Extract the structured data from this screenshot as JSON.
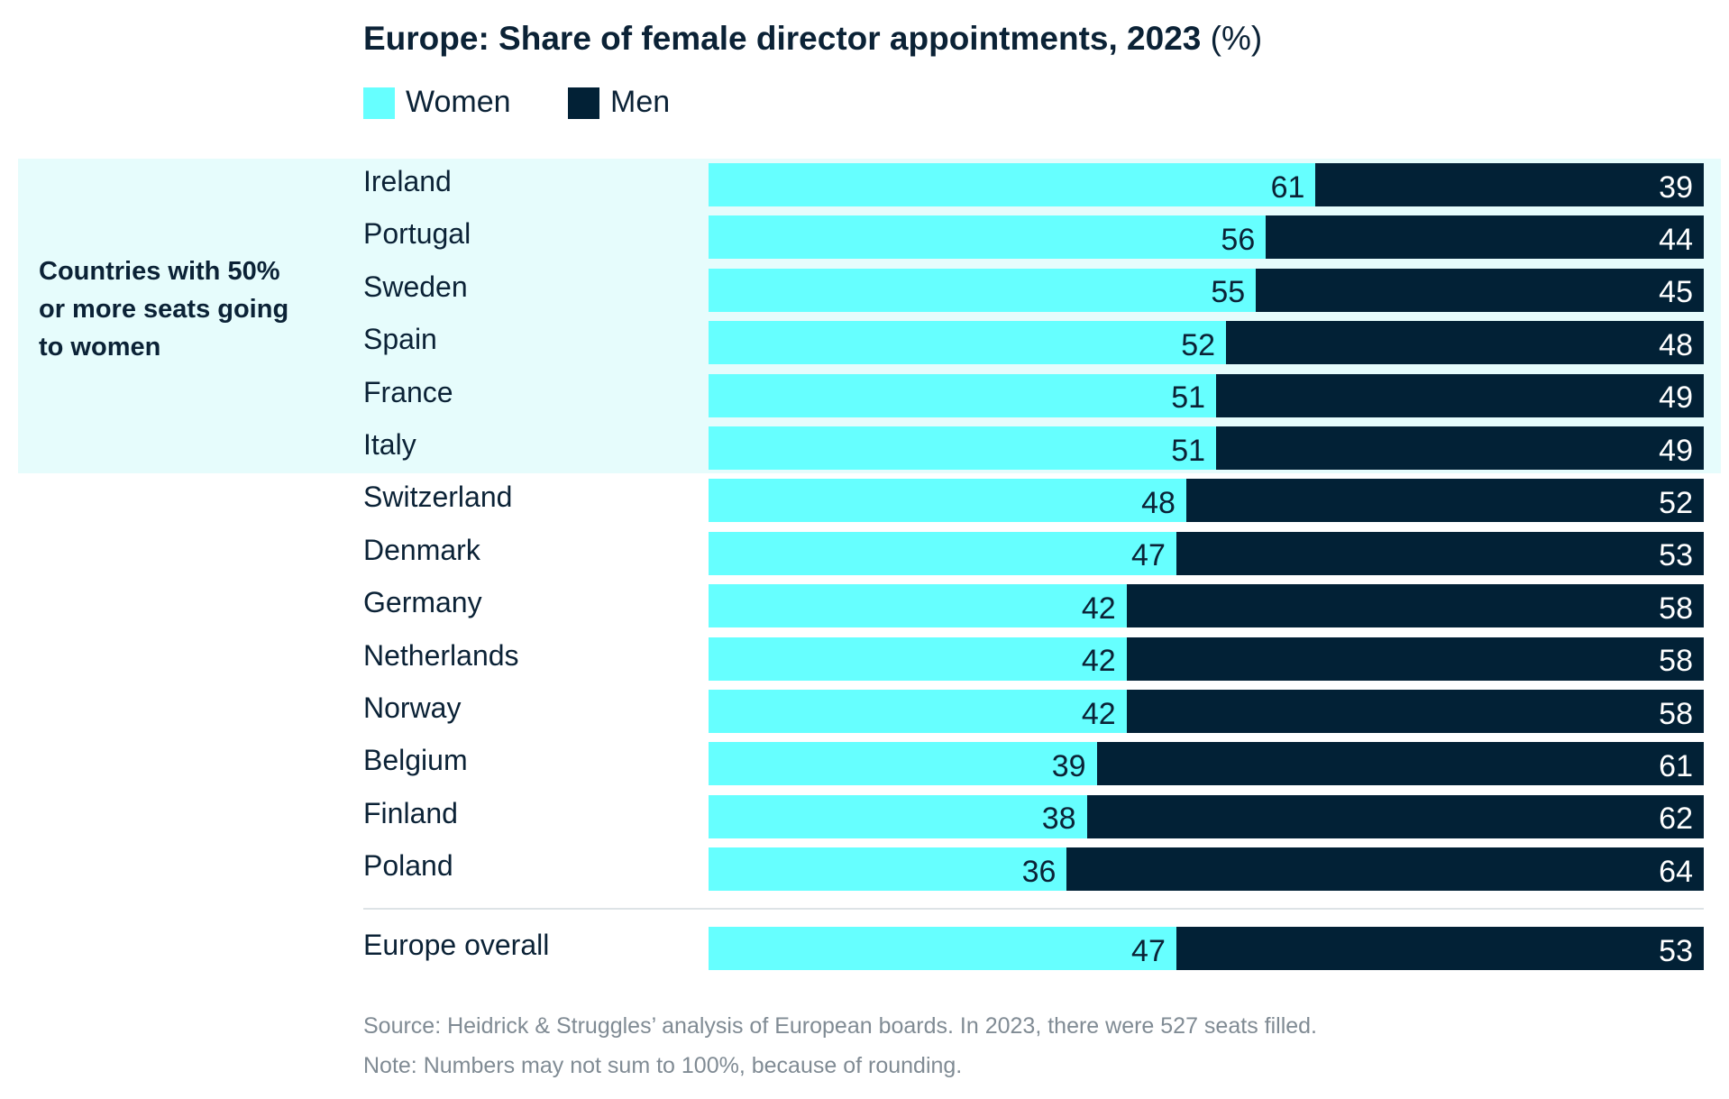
{
  "title_main": "Europe: Share of female director appointments, 2023",
  "title_unit": "(%)",
  "band_label": "Countries with 50% or more seats going to women",
  "colors": {
    "women": "#66FFFF",
    "men": "#022136",
    "band": "#E6FCFC"
  },
  "chart_data": {
    "type": "bar",
    "orientation": "horizontal",
    "stacked": true,
    "title": "Europe: Share of female director appointments, 2023 (%)",
    "legend": [
      "Women",
      "Men"
    ],
    "legend_position": "top-left",
    "categories": [
      "Ireland",
      "Portugal",
      "Sweden",
      "Spain",
      "France",
      "Italy",
      "Switzerland",
      "Denmark",
      "Germany",
      "Netherlands",
      "Norway",
      "Belgium",
      "Finland",
      "Poland",
      "Europe overall"
    ],
    "series": [
      {
        "name": "Women",
        "values": [
          61,
          56,
          55,
          52,
          51,
          51,
          48,
          47,
          42,
          42,
          42,
          39,
          38,
          36,
          47
        ]
      },
      {
        "name": "Men",
        "values": [
          39,
          44,
          45,
          48,
          49,
          49,
          52,
          53,
          58,
          58,
          58,
          61,
          62,
          64,
          53
        ]
      }
    ],
    "xlim": [
      0,
      100
    ],
    "grid": false
  },
  "footer": {
    "source": "Source: Heidrick & Struggles’ analysis of European boards. In 2023, there were 527 seats filled.",
    "note": "Note: Numbers may not sum to 100%, because of rounding."
  }
}
